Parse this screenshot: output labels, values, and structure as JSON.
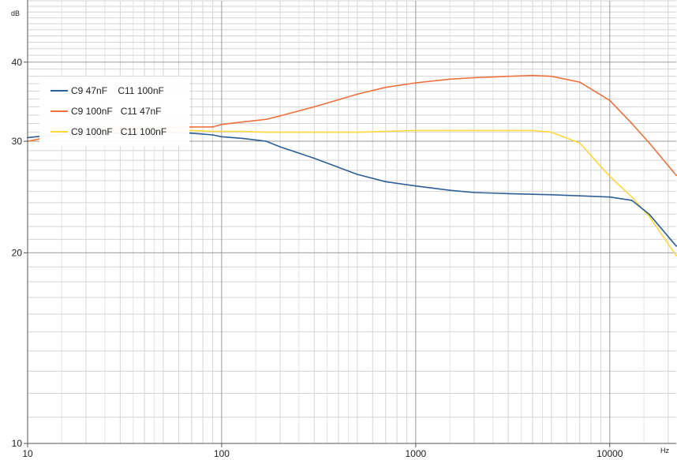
{
  "chart_data": {
    "type": "line",
    "x_scale": "log",
    "y_scale": "log",
    "xlim": [
      10,
      22000
    ],
    "ylim": [
      10,
      50
    ],
    "x_ticks": [
      10,
      100,
      1000,
      10000
    ],
    "y_ticks": [
      10,
      20,
      30,
      40
    ],
    "xunit": "Hz",
    "yunit": "dB",
    "grid": true,
    "legend_position": "upper-left",
    "series": [
      {
        "name": "C9 47nF    C11 100nF",
        "color": "#2e5f94",
        "x": [
          10,
          15,
          20,
          30,
          50,
          70,
          90,
          100,
          130,
          170,
          200,
          300,
          500,
          700,
          1000,
          1500,
          2000,
          3000,
          5000,
          7000,
          10000,
          13000,
          16000,
          22000
        ],
        "y": [
          30.4,
          30.8,
          30.9,
          30.9,
          31.0,
          30.9,
          30.7,
          30.5,
          30.3,
          30.0,
          29.4,
          28.2,
          26.6,
          25.9,
          25.5,
          25.1,
          24.9,
          24.8,
          24.7,
          24.6,
          24.5,
          24.2,
          23.0,
          20.5
        ]
      },
      {
        "name": "C9 100nF   C11 47nF",
        "color": "#f0703c",
        "x": [
          10,
          15,
          20,
          30,
          50,
          70,
          90,
          100,
          130,
          170,
          200,
          300,
          500,
          700,
          1000,
          1500,
          2000,
          3000,
          4000,
          5000,
          7000,
          10000,
          13000,
          16000,
          22000
        ],
        "y": [
          30.0,
          30.8,
          31.2,
          31.4,
          31.5,
          31.6,
          31.6,
          31.9,
          32.2,
          32.5,
          32.9,
          34.0,
          35.6,
          36.5,
          37.1,
          37.6,
          37.8,
          38.0,
          38.1,
          38.0,
          37.2,
          34.8,
          32.0,
          29.8,
          26.5
        ]
      },
      {
        "name": "C9 100nF   C11 100nF",
        "color": "#ffd93a",
        "x": [
          10,
          15,
          20,
          30,
          50,
          70,
          90,
          100,
          130,
          170,
          200,
          300,
          500,
          700,
          1000,
          1500,
          2000,
          3000,
          4000,
          5000,
          7000,
          10000,
          13000,
          16000,
          22000
        ],
        "y": [
          30.0,
          30.7,
          31.1,
          31.2,
          31.2,
          31.2,
          31.1,
          31.1,
          31.1,
          31.0,
          31.0,
          31.0,
          31.0,
          31.1,
          31.2,
          31.2,
          31.2,
          31.2,
          31.2,
          31.0,
          29.8,
          26.4,
          24.5,
          22.8,
          19.8
        ]
      }
    ]
  }
}
